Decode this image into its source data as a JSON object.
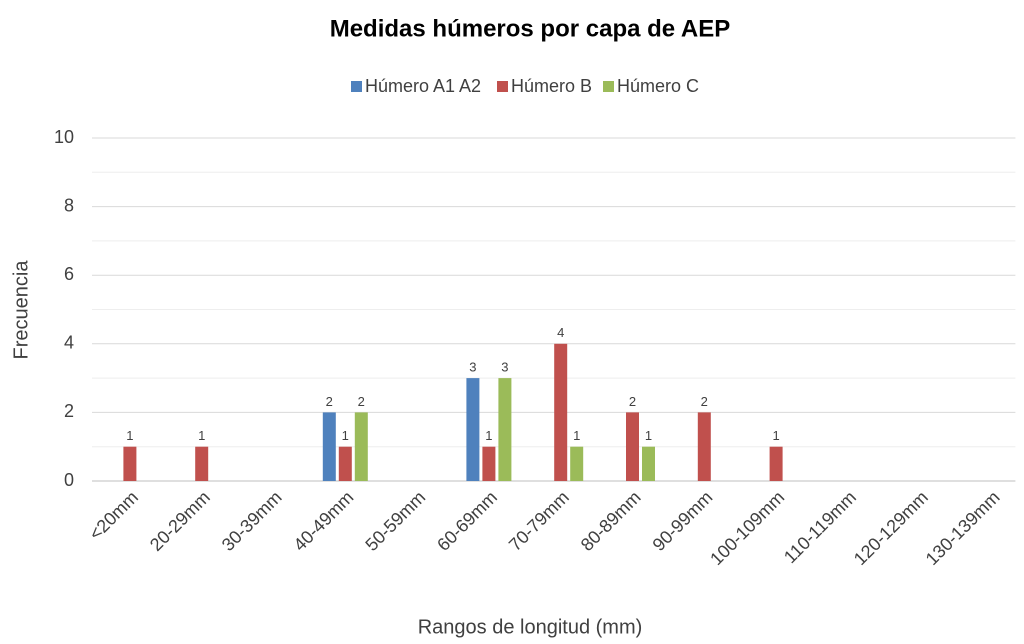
{
  "chart_data": {
    "type": "bar",
    "title": "Medidas húmeros por capa de AEP",
    "x_label": "Rangos de longitud  (mm)",
    "y_label": "Frecuencia",
    "categories": [
      "<20mm",
      "20-29mm",
      "30-39mm",
      "40-49mm",
      "50-59mm",
      "60-69mm",
      "70-79mm",
      "80-89mm",
      "90-99mm",
      "100-109mm",
      "110-119mm",
      "120-129mm",
      "130-139mm"
    ],
    "series": [
      {
        "name": "Húmero A1 A2",
        "color": "#4f81bd",
        "values": [
          null,
          null,
          null,
          2,
          null,
          3,
          null,
          null,
          null,
          null,
          null,
          null,
          null
        ]
      },
      {
        "name": "Húmero B",
        "color": "#c0504d",
        "values": [
          1,
          1,
          null,
          1,
          null,
          1,
          4,
          2,
          2,
          1,
          null,
          null,
          null
        ]
      },
      {
        "name": "Húmero C",
        "color": "#9bbb59",
        "values": [
          null,
          null,
          null,
          2,
          null,
          3,
          1,
          1,
          null,
          null,
          null,
          null,
          null
        ]
      }
    ],
    "ylim": [
      0,
      10
    ],
    "yticks": [
      0,
      2,
      4,
      6,
      8,
      10
    ],
    "minor_yticks": [
      1,
      3,
      5,
      7,
      9
    ],
    "grid": true,
    "legend": "top",
    "data_labels": true
  }
}
